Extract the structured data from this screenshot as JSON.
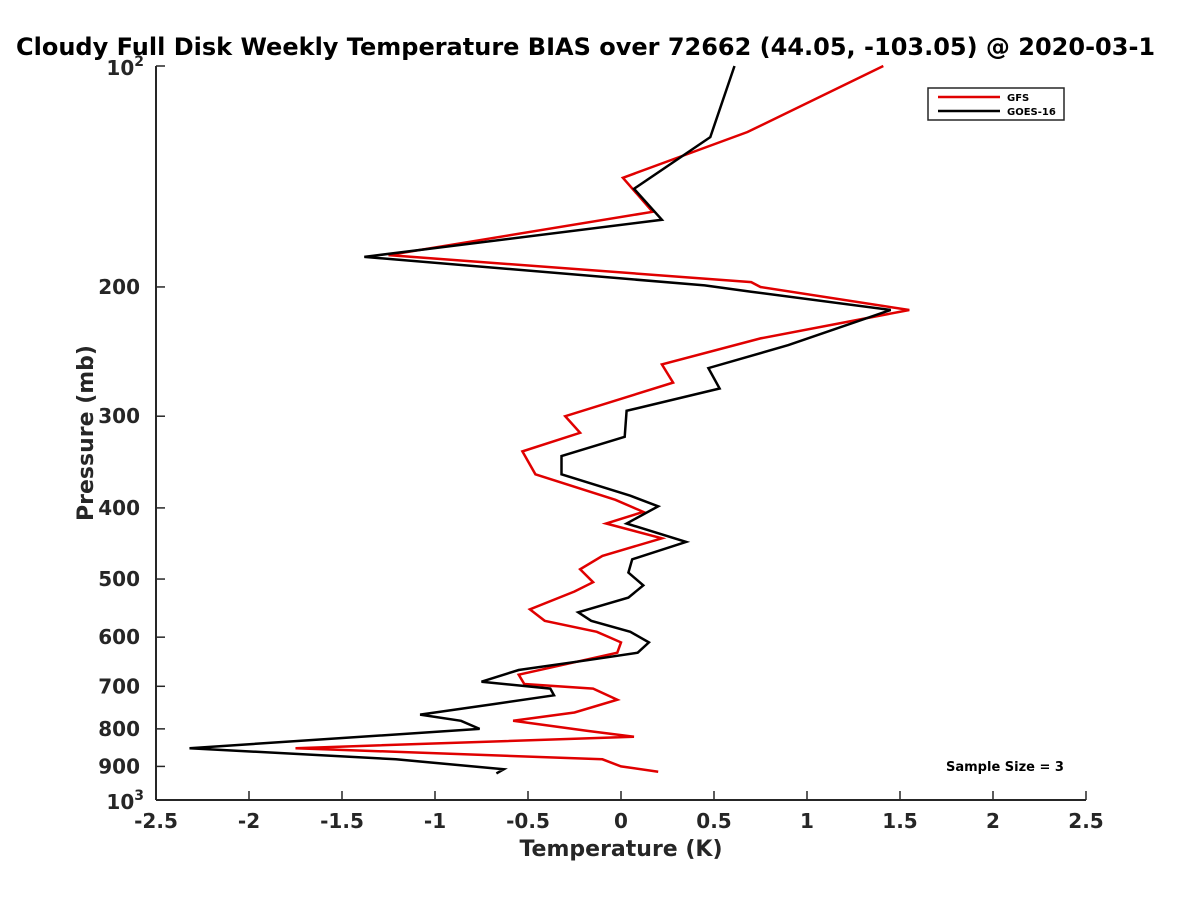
{
  "chart_data": {
    "type": "line",
    "title": "Cloudy Full Disk Weekly Temperature BIAS over 72662 (44.05, -103.05) @ 2020-03-1",
    "xlabel": "Temperature (K)",
    "ylabel": "Pressure (mb)",
    "xlim": [
      -2.5,
      2.5
    ],
    "ylim": [
      100,
      1000
    ],
    "y_scale": "log",
    "y_reversed": true,
    "grid": false,
    "legend_position": "top-right",
    "annotation": "Sample Size = 3",
    "x_ticks": [
      "-2.5",
      "-2",
      "-1.5",
      "-1",
      "-0.5",
      "0",
      "0.5",
      "1",
      "1.5",
      "2",
      "2.5"
    ],
    "x_tick_values": [
      -2.5,
      -2,
      -1.5,
      -1,
      -0.5,
      0,
      0.5,
      1,
      1.5,
      2,
      2.5
    ],
    "y_ticks": [
      {
        "value": 100,
        "base": "10",
        "exp": "2"
      },
      {
        "value": 200,
        "label": "200"
      },
      {
        "value": 300,
        "label": "300"
      },
      {
        "value": 400,
        "label": "400"
      },
      {
        "value": 500,
        "label": "500"
      },
      {
        "value": 600,
        "label": "600"
      },
      {
        "value": 700,
        "label": "700"
      },
      {
        "value": 800,
        "label": "800"
      },
      {
        "value": 900,
        "label": "900"
      },
      {
        "value": 1000,
        "base": "10",
        "exp": "3"
      }
    ],
    "series": [
      {
        "name": "GFS",
        "color": "#e00000",
        "points": [
          [
            1.41,
            100
          ],
          [
            0.68,
            123
          ],
          [
            0.01,
            142
          ],
          [
            0.17,
            158
          ],
          [
            -1.25,
            181
          ],
          [
            0.7,
            197
          ],
          [
            0.75,
            200
          ],
          [
            1.55,
            215
          ],
          [
            0.75,
            235
          ],
          [
            0.22,
            255
          ],
          [
            0.28,
            270
          ],
          [
            -0.3,
            300
          ],
          [
            -0.22,
            316
          ],
          [
            -0.53,
            335
          ],
          [
            -0.46,
            360
          ],
          [
            -0.03,
            390
          ],
          [
            0.12,
            405
          ],
          [
            -0.08,
            420
          ],
          [
            0.22,
            440
          ],
          [
            -0.1,
            465
          ],
          [
            -0.22,
            485
          ],
          [
            -0.15,
            505
          ],
          [
            -0.25,
            520
          ],
          [
            -0.49,
            550
          ],
          [
            -0.41,
            570
          ],
          [
            -0.13,
            590
          ],
          [
            0.0,
            610
          ],
          [
            -0.02,
            630
          ],
          [
            -0.2,
            645
          ],
          [
            -0.55,
            675
          ],
          [
            -0.52,
            695
          ],
          [
            -0.15,
            705
          ],
          [
            -0.02,
            730
          ],
          [
            -0.25,
            760
          ],
          [
            -0.58,
            780
          ],
          [
            -0.18,
            805
          ],
          [
            0.07,
            820
          ],
          [
            -1.75,
            850
          ],
          [
            -0.1,
            880
          ],
          [
            0.0,
            900
          ],
          [
            0.2,
            915
          ]
        ]
      },
      {
        "name": "GOES-16",
        "color": "#000000",
        "points": [
          [
            0.61,
            100
          ],
          [
            0.48,
            125
          ],
          [
            0.07,
            147
          ],
          [
            0.22,
            162
          ],
          [
            -1.38,
            182
          ],
          [
            0.45,
            199
          ],
          [
            0.7,
            203
          ],
          [
            1.45,
            215
          ],
          [
            0.9,
            240
          ],
          [
            0.47,
            258
          ],
          [
            0.53,
            275
          ],
          [
            0.03,
            295
          ],
          [
            0.02,
            320
          ],
          [
            -0.32,
            340
          ],
          [
            -0.32,
            360
          ],
          [
            0.05,
            385
          ],
          [
            0.2,
            398
          ],
          [
            0.03,
            420
          ],
          [
            0.35,
            445
          ],
          [
            0.06,
            470
          ],
          [
            0.04,
            490
          ],
          [
            0.12,
            510
          ],
          [
            0.04,
            530
          ],
          [
            -0.23,
            555
          ],
          [
            -0.16,
            570
          ],
          [
            0.05,
            590
          ],
          [
            0.15,
            610
          ],
          [
            0.09,
            630
          ],
          [
            -0.18,
            645
          ],
          [
            -0.55,
            665
          ],
          [
            -0.75,
            690
          ],
          [
            -0.38,
            705
          ],
          [
            -0.36,
            720
          ],
          [
            -0.68,
            740
          ],
          [
            -1.08,
            765
          ],
          [
            -0.86,
            780
          ],
          [
            -0.76,
            800
          ],
          [
            -2.32,
            850
          ],
          [
            -1.21,
            880
          ],
          [
            -0.63,
            908
          ],
          [
            -0.67,
            920
          ]
        ]
      }
    ]
  }
}
